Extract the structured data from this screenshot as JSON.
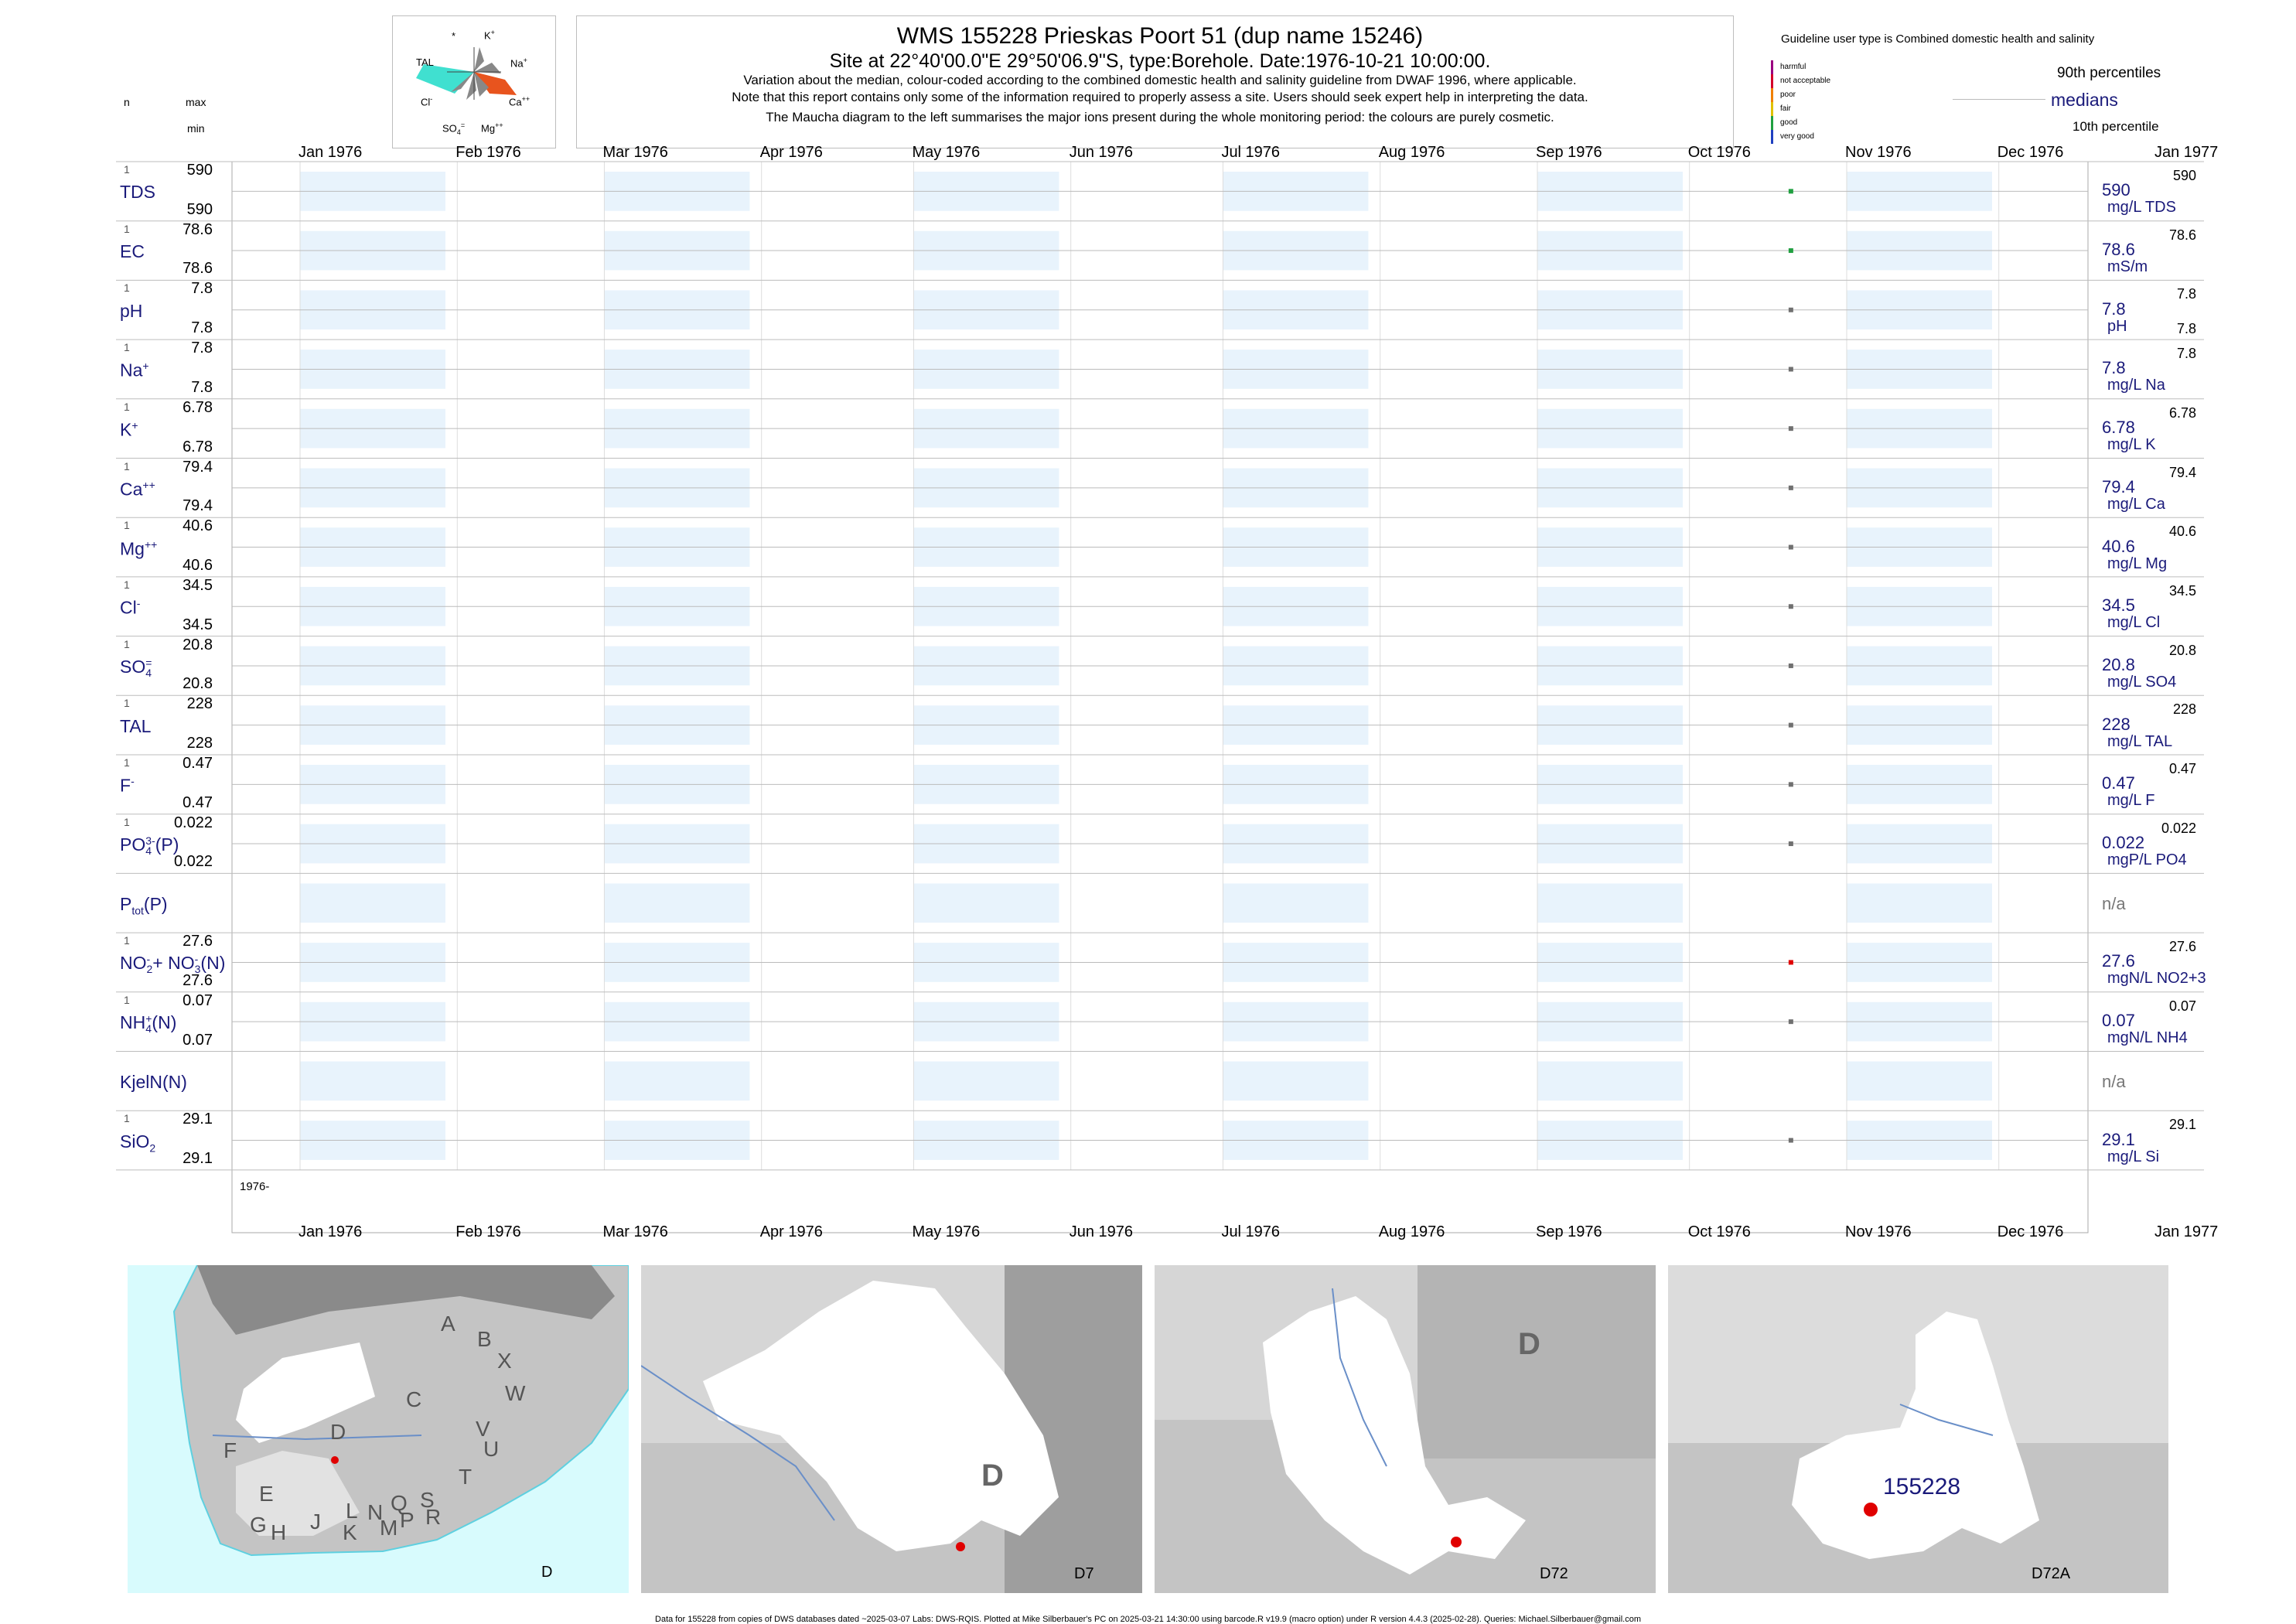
{
  "header": {
    "title": "WMS 155228  Prieskas Poort 51 (dup name 15246)",
    "subtitle": "Site at 22°40'00.0\"E 29°50'06.9\"S, type:Borehole. Date:1976-10-21 10:00:00.",
    "note1": "Variation about the median,  colour-coded according to the combined domestic health and salinity guideline from DWAF 1996, where applicable.",
    "note2": "Note that this report contains only some of the information required to properly assess a site. Users should seek expert help in interpreting the data.",
    "note3": "The Maucha diagram to the left summarises the major ions present during the whole monitoring period: the colours are purely cosmetic."
  },
  "left_header": {
    "n": "n",
    "max": "max",
    "min": "min"
  },
  "maucha": {
    "labels": {
      "star": "*",
      "k": "K",
      "k_sup": "+",
      "tal": "TAL",
      "na": "Na",
      "na_sup": "+",
      "cl": "Cl",
      "cl_sup": "-",
      "ca": "Ca",
      "ca_sup": "++",
      "so4": "SO",
      "so4_sub": "4",
      "so4_sup": "=",
      "mg": "Mg",
      "mg_sup": "++"
    },
    "colors": {
      "tal": "#40e0d0",
      "ca": "#e8541e",
      "grey": "#888888",
      "dark": "#444444"
    }
  },
  "legend": {
    "guideline": "Guideline user type is Combined domestic health and salinity",
    "categories": [
      {
        "label": "harmful",
        "color": "#9a0080"
      },
      {
        "label": "not acceptable",
        "color": "#d4002a"
      },
      {
        "label": "poor",
        "color": "#f08000"
      },
      {
        "label": "fair",
        "color": "#e0c000"
      },
      {
        "label": "good",
        "color": "#20a040"
      },
      {
        "label": "very good",
        "color": "#2040c0"
      }
    ],
    "p90": "90th percentiles",
    "medians": "medians",
    "p10": "10th percentile"
  },
  "chart_data": {
    "type": "scatter",
    "x_axis": {
      "ticks": [
        "Jan 1976",
        "Feb 1976",
        "Mar 1976",
        "Apr 1976",
        "May 1976",
        "Jun 1976",
        "Jul 1976",
        "Aug 1976",
        "Sep 1976",
        "Oct 1976",
        "Nov 1976",
        "Dec 1976",
        "Jan 1977"
      ],
      "range": [
        "1976-01-01",
        "1977-01-01"
      ],
      "period_label": "1976-"
    },
    "sample_date": "1976-10-21",
    "panels": [
      {
        "label": "TDS",
        "sup": "",
        "sub": "",
        "sup2": "",
        "sub2": "",
        "tail": "",
        "n": "1",
        "max": "590",
        "min": "590",
        "value": "590",
        "p90": "590",
        "unit": "mg/L TDS",
        "color": "#20a040"
      },
      {
        "label": "EC",
        "sup": "",
        "sub": "",
        "sup2": "",
        "sub2": "",
        "tail": "",
        "n": "1",
        "max": "78.6",
        "min": "78.6",
        "value": "78.6",
        "p90": "78.6",
        "unit": "mS/m",
        "color": "#20a040"
      },
      {
        "label": "pH",
        "sup": "",
        "sub": "",
        "sup2": "",
        "sub2": "",
        "tail": "",
        "n": "1",
        "max": "7.8",
        "min": "7.8",
        "value": "7.8",
        "p90": "7.8",
        "unit": "pH",
        "p10": "7.8",
        "color": "#707070"
      },
      {
        "label": "Na",
        "sup": "+",
        "sub": "",
        "sup2": "",
        "sub2": "",
        "tail": "",
        "n": "1",
        "max": "7.8",
        "min": "7.8",
        "value": "7.8",
        "p90": "7.8",
        "unit": "mg/L Na",
        "color": "#707070"
      },
      {
        "label": "K",
        "sup": "+",
        "sub": "",
        "sup2": "",
        "sub2": "",
        "tail": "",
        "n": "1",
        "max": "6.78",
        "min": "6.78",
        "value": "6.78",
        "p90": "6.78",
        "unit": "mg/L K",
        "color": "#707070"
      },
      {
        "label": "Ca",
        "sup": "++",
        "sub": "",
        "sup2": "",
        "sub2": "",
        "tail": "",
        "n": "1",
        "max": "79.4",
        "min": "79.4",
        "value": "79.4",
        "p90": "79.4",
        "unit": "mg/L Ca",
        "color": "#707070"
      },
      {
        "label": "Mg",
        "sup": "++",
        "sub": "",
        "sup2": "",
        "sub2": "",
        "tail": "",
        "n": "1",
        "max": "40.6",
        "min": "40.6",
        "value": "40.6",
        "p90": "40.6",
        "unit": "mg/L Mg",
        "color": "#707070"
      },
      {
        "label": "Cl",
        "sup": "-",
        "sub": "",
        "sup2": "",
        "sub2": "",
        "tail": "",
        "n": "1",
        "max": "34.5",
        "min": "34.5",
        "value": "34.5",
        "p90": "34.5",
        "unit": "mg/L Cl",
        "color": "#707070"
      },
      {
        "label": "SO",
        "sup": "=",
        "sub": "4",
        "sup2": "",
        "sub2": "",
        "tail": "",
        "n": "1",
        "max": "20.8",
        "min": "20.8",
        "value": "20.8",
        "p90": "20.8",
        "unit": "mg/L SO4",
        "color": "#707070"
      },
      {
        "label": "TAL",
        "sup": "",
        "sub": "",
        "sup2": "",
        "sub2": "",
        "tail": "",
        "n": "1",
        "max": "228",
        "min": "228",
        "value": "228",
        "p90": "228",
        "unit": "mg/L TAL",
        "color": "#707070"
      },
      {
        "label": "F",
        "sup": "-",
        "sub": "",
        "sup2": "",
        "sub2": "",
        "tail": "",
        "n": "1",
        "max": "0.47",
        "min": "0.47",
        "value": "0.47",
        "p90": "0.47",
        "unit": "mg/L F",
        "color": "#707070"
      },
      {
        "label": "PO",
        "sup": "3-",
        "sub": "4",
        "sup2": "",
        "sub2": "",
        "tail": "(P)",
        "n": "1",
        "max": "0.022",
        "min": "0.022",
        "value": "0.022",
        "p90": "0.022",
        "unit": "mgP/L PO4",
        "color": "#707070"
      },
      {
        "label": "P",
        "sup": "",
        "sub": "tot",
        "sup2": "",
        "sub2": "",
        "tail": "(P)",
        "n": "",
        "max": "",
        "min": "",
        "value": "n/a",
        "p90": "",
        "unit": "",
        "color": ""
      },
      {
        "label": "NO",
        "sup": "-",
        "sub": "2",
        "mid": "+ NO",
        "sup2": "-",
        "sub2": "3",
        "tail": "(N)",
        "n": "1",
        "max": "27.6",
        "min": "27.6",
        "value": "27.6",
        "p90": "27.6",
        "unit": "mgN/L NO2+3",
        "color": "#e00000"
      },
      {
        "label": "NH",
        "sup": "+",
        "sub": "4",
        "sup2": "",
        "sub2": "",
        "tail": "(N)",
        "n": "1",
        "max": "0.07",
        "min": "0.07",
        "value": "0.07",
        "p90": "0.07",
        "unit": "mgN/L NH4",
        "color": "#707070"
      },
      {
        "label": "KjelN(N)",
        "sup": "",
        "sub": "",
        "sup2": "",
        "sub2": "",
        "tail": "",
        "n": "",
        "max": "",
        "min": "",
        "value": "n/a",
        "p90": "",
        "unit": "",
        "color": ""
      },
      {
        "label": "SiO",
        "sup": "",
        "sub": "2",
        "sup2": "",
        "sub2": "",
        "tail": "",
        "n": "1",
        "max": "29.1",
        "min": "29.1",
        "value": "29.1",
        "p90": "29.1",
        "unit": "mg/L Si",
        "color": "#707070"
      }
    ],
    "colors": {
      "band": "#e8f3fc",
      "grid": "#dddddd",
      "axis": "#aaaaaa",
      "median_line": "#bbbbbb"
    }
  },
  "maps": {
    "m1": {
      "label": "D",
      "regions": [
        "A",
        "B",
        "X",
        "W",
        "C",
        "V",
        "U",
        "T",
        "D",
        "F",
        "E",
        "G",
        "H",
        "J",
        "K",
        "L",
        "N",
        "M",
        "P",
        "Q",
        "S",
        "R"
      ]
    },
    "m2": {
      "label": "D7",
      "region": "D"
    },
    "m3": {
      "label": "D72",
      "region": "D"
    },
    "m4": {
      "label": "D72A",
      "site": "155228"
    },
    "colors": {
      "sea": "#d8fbfd",
      "land": "#c4c4c4",
      "land_dark": "#8a8a8a",
      "white": "#ffffff",
      "river": "#6a8fc8",
      "site": "#e00000",
      "site_label": "#1a1a7a"
    }
  },
  "footer": "Data for 155228 from copies of DWS databases dated ~2025-03-07 Labs: DWS-RQIS. Plotted at Mike Silberbauer's PC on 2025-03-21 14:30:00 using barcode.R v19.9 (macro option) under R version 4.4.3 (2025-02-28). Queries: Michael.Silberbauer@gmail.com"
}
